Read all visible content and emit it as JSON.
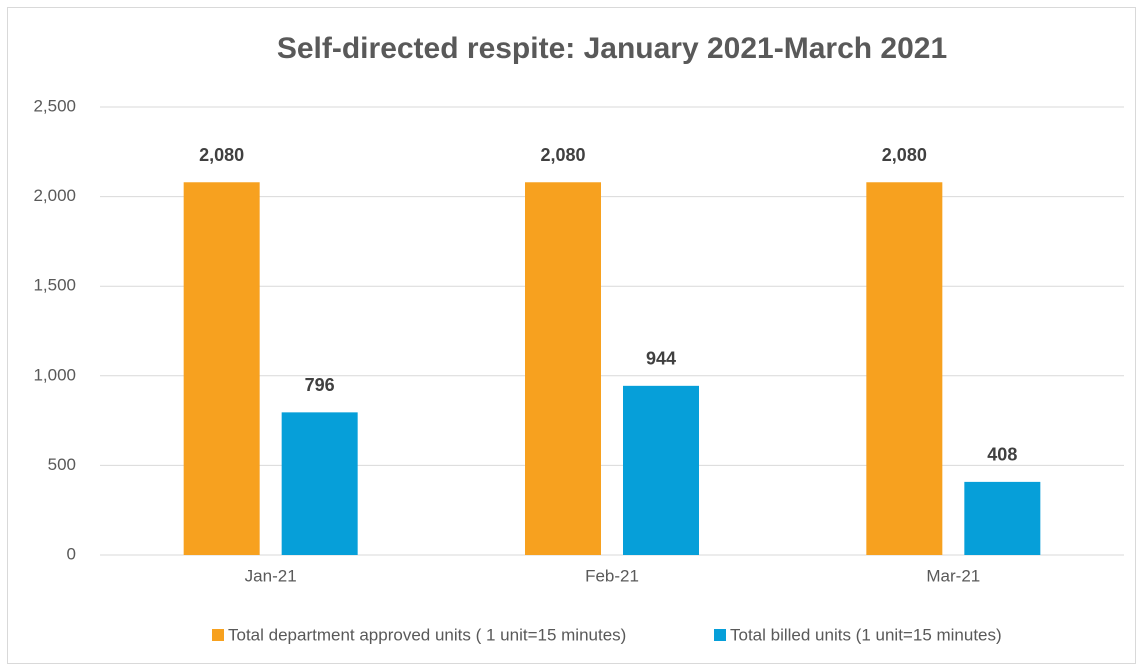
{
  "chart_data": {
    "type": "bar",
    "title": "Self-directed respite: January 2021-March 2021",
    "categories": [
      "Jan-21",
      "Feb-21",
      "Mar-21"
    ],
    "series": [
      {
        "name": "Total department approved units ( 1 unit=15 minutes)",
        "color": "#f7a11f",
        "values": [
          2080,
          2080,
          2080
        ],
        "value_labels": [
          "2,080",
          "2,080",
          "2,080"
        ]
      },
      {
        "name": "Total billed units (1 unit=15 minutes)",
        "color": "#069fd9",
        "values": [
          796,
          944,
          408
        ]
      }
    ],
    "ylim": [
      0,
      2500
    ],
    "yticks": [
      0,
      500,
      {
        "value": 1000,
        "label": "1,000"
      },
      {
        "value": 1500,
        "label": "1,500"
      },
      {
        "value": 2000,
        "label": "2,000"
      },
      {
        "value": 2500,
        "label": "2,500"
      }
    ],
    "grid": true,
    "legend": "bottom"
  }
}
